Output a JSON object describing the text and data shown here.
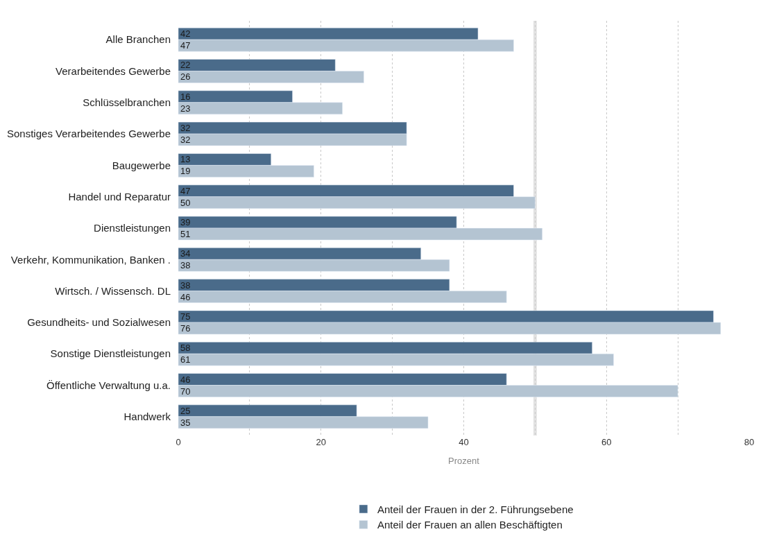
{
  "chart_data": {
    "type": "bar",
    "orientation": "horizontal",
    "categories": [
      "Alle Branchen",
      "Verarbeitendes Gewerbe",
      "Schlüsselbranchen",
      "Sonstiges Verarbeitendes Gewerbe",
      "Baugewerbe",
      "Handel und Reparatur",
      "Dienstleistungen",
      "Verkehr, Kommunikation, Banken .",
      "Wirtsch. / Wissensch. DL",
      "Gesundheits- und Sozialwesen",
      "Sonstige Dienstleistungen",
      "Öffentliche Verwaltung u.a.",
      "Handwerk"
    ],
    "series": [
      {
        "name": "Anteil der Frauen in der 2. Führungsebene",
        "color": "#4a6b8a",
        "values": [
          42,
          22,
          16,
          32,
          13,
          47,
          39,
          34,
          38,
          75,
          58,
          46,
          25
        ]
      },
      {
        "name": "Anteil der Frauen an allen Beschäftigten",
        "color": "#b4c4d2",
        "values": [
          47,
          26,
          23,
          32,
          19,
          50,
          51,
          38,
          46,
          76,
          61,
          70,
          35
        ]
      }
    ],
    "data_labels": true,
    "xlabel": "Prozent",
    "xlim": [
      0,
      80
    ],
    "xticks": [
      0,
      {
        "value": 10,
        "label": null
      },
      20,
      {
        "value": 30,
        "label": null
      },
      40,
      {
        "value": 50,
        "label": null
      },
      60,
      {
        "value": 70,
        "label": null
      },
      80
    ],
    "grid": "x",
    "ref_lines": [
      {
        "axis": "x",
        "value": 50,
        "color": "#e3e3e3"
      }
    ],
    "legend": "bottom"
  }
}
